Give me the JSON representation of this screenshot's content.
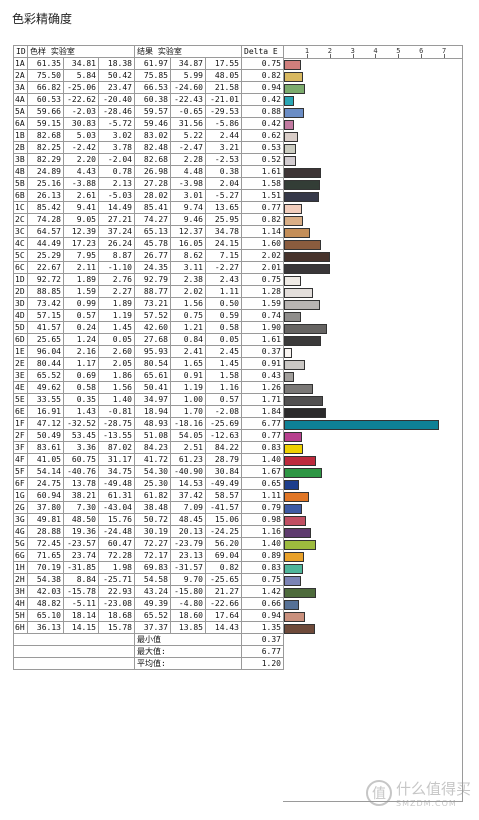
{
  "title": "色彩精确度",
  "headers": [
    "ID",
    "色样 实验室",
    "",
    "",
    "结果 实验室",
    "",
    "",
    "Delta E"
  ],
  "axis_ticks": [
    "1",
    "2",
    "3",
    "4",
    "5",
    "6",
    "7"
  ],
  "axis_max": 7,
  "rows": [
    {
      "id": "1A",
      "s": [
        "61.35",
        "34.81",
        "18.38"
      ],
      "r": [
        "61.97",
        "34.87",
        "17.55"
      ],
      "de": "0.75",
      "color": "#d07f7c"
    },
    {
      "id": "2A",
      "s": [
        "75.50",
        "5.84",
        "50.42"
      ],
      "r": [
        "75.85",
        "5.99",
        "48.05"
      ],
      "de": "0.82",
      "color": "#d8b860"
    },
    {
      "id": "3A",
      "s": [
        "66.82",
        "-25.06",
        "23.47"
      ],
      "r": [
        "66.53",
        "-24.60",
        "21.58"
      ],
      "de": "0.94",
      "color": "#7cab6d"
    },
    {
      "id": "4A",
      "s": [
        "60.53",
        "-22.62",
        "-20.40"
      ],
      "r": [
        "60.38",
        "-22.43",
        "-21.01"
      ],
      "de": "0.42",
      "color": "#2aa6b5"
    },
    {
      "id": "5A",
      "s": [
        "59.66",
        "-2.03",
        "-28.46"
      ],
      "r": [
        "59.57",
        "-0.65",
        "-29.53"
      ],
      "de": "0.88",
      "color": "#6b8dc5"
    },
    {
      "id": "6A",
      "s": [
        "59.15",
        "30.83",
        "-5.72"
      ],
      "r": [
        "59.46",
        "31.56",
        "-5.86"
      ],
      "de": "0.42",
      "color": "#c27aa1"
    },
    {
      "id": "1B",
      "s": [
        "82.68",
        "5.03",
        "3.02"
      ],
      "r": [
        "83.02",
        "5.22",
        "2.44"
      ],
      "de": "0.62",
      "color": "#d9cdc8"
    },
    {
      "id": "2B",
      "s": [
        "82.25",
        "-2.42",
        "3.78"
      ],
      "r": [
        "82.48",
        "-2.47",
        "3.21"
      ],
      "de": "0.53",
      "color": "#cccdc2"
    },
    {
      "id": "3B",
      "s": [
        "82.29",
        "2.20",
        "-2.04"
      ],
      "r": [
        "82.68",
        "2.28",
        "-2.53"
      ],
      "de": "0.52",
      "color": "#d2ccd0"
    },
    {
      "id": "4B",
      "s": [
        "24.89",
        "4.43",
        "0.78"
      ],
      "r": [
        "26.98",
        "4.48",
        "0.38"
      ],
      "de": "1.61",
      "color": "#3e3536"
    },
    {
      "id": "5B",
      "s": [
        "25.16",
        "-3.88",
        "2.13"
      ],
      "r": [
        "27.28",
        "-3.98",
        "2.04"
      ],
      "de": "1.58",
      "color": "#333d36"
    },
    {
      "id": "6B",
      "s": [
        "26.13",
        "2.61",
        "-5.03"
      ],
      "r": [
        "28.02",
        "3.01",
        "-5.27"
      ],
      "de": "1.51",
      "color": "#363949"
    },
    {
      "id": "1C",
      "s": [
        "85.42",
        "9.41",
        "14.49"
      ],
      "r": [
        "85.41",
        "9.74",
        "13.65"
      ],
      "de": "0.77",
      "color": "#f2cebd"
    },
    {
      "id": "2C",
      "s": [
        "74.28",
        "9.05",
        "27.21"
      ],
      "r": [
        "74.27",
        "9.46",
        "25.95"
      ],
      "de": "0.82",
      "color": "#d9ae86"
    },
    {
      "id": "3C",
      "s": [
        "64.57",
        "12.39",
        "37.24"
      ],
      "r": [
        "65.13",
        "12.37",
        "34.78"
      ],
      "de": "1.14",
      "color": "#c48e58"
    },
    {
      "id": "4C",
      "s": [
        "44.49",
        "17.23",
        "26.24"
      ],
      "r": [
        "45.78",
        "16.05",
        "24.15"
      ],
      "de": "1.60",
      "color": "#8a5c3e"
    },
    {
      "id": "5C",
      "s": [
        "25.29",
        "7.95",
        "8.87"
      ],
      "r": [
        "26.77",
        "8.62",
        "7.15"
      ],
      "de": "2.02",
      "color": "#47332c"
    },
    {
      "id": "6C",
      "s": [
        "22.67",
        "2.11",
        "-1.10"
      ],
      "r": [
        "24.35",
        "3.11",
        "-2.27"
      ],
      "de": "2.01",
      "color": "#393638"
    },
    {
      "id": "1D",
      "s": [
        "92.72",
        "1.89",
        "2.76"
      ],
      "r": [
        "92.79",
        "2.38",
        "2.43"
      ],
      "de": "0.75",
      "color": "#efebe6"
    },
    {
      "id": "2D",
      "s": [
        "88.85",
        "1.59",
        "2.27"
      ],
      "r": [
        "88.77",
        "2.02",
        "1.11"
      ],
      "de": "1.28",
      "color": "#e3dedb"
    },
    {
      "id": "3D",
      "s": [
        "73.42",
        "0.99",
        "1.89"
      ],
      "r": [
        "73.21",
        "1.56",
        "0.50"
      ],
      "de": "1.59",
      "color": "#b8b4b2"
    },
    {
      "id": "4D",
      "s": [
        "57.15",
        "0.57",
        "1.19"
      ],
      "r": [
        "57.52",
        "0.75",
        "0.59"
      ],
      "de": "0.74",
      "color": "#8f8d8b"
    },
    {
      "id": "5D",
      "s": [
        "41.57",
        "0.24",
        "1.45"
      ],
      "r": [
        "42.60",
        "1.21",
        "0.58"
      ],
      "de": "1.90",
      "color": "#666462"
    },
    {
      "id": "6D",
      "s": [
        "25.65",
        "1.24",
        "0.05"
      ],
      "r": [
        "27.68",
        "0.84",
        "0.05"
      ],
      "de": "1.61",
      "color": "#3b3a3a"
    },
    {
      "id": "1E",
      "s": [
        "96.04",
        "2.16",
        "2.60"
      ],
      "r": [
        "95.93",
        "2.41",
        "2.45"
      ],
      "de": "0.37",
      "color": "#f8f4f1"
    },
    {
      "id": "2E",
      "s": [
        "80.44",
        "1.17",
        "2.05"
      ],
      "r": [
        "80.54",
        "1.65",
        "1.45"
      ],
      "de": "0.91",
      "color": "#cac7c4"
    },
    {
      "id": "3E",
      "s": [
        "65.52",
        "0.69",
        "1.86"
      ],
      "r": [
        "65.61",
        "0.91",
        "1.58"
      ],
      "de": "0.43",
      "color": "#a19e9b"
    },
    {
      "id": "4E",
      "s": [
        "49.62",
        "0.58",
        "1.56"
      ],
      "r": [
        "50.41",
        "1.19",
        "1.16"
      ],
      "de": "1.26",
      "color": "#7a7876"
    },
    {
      "id": "5E",
      "s": [
        "33.55",
        "0.35",
        "1.40"
      ],
      "r": [
        "34.97",
        "1.00",
        "0.57"
      ],
      "de": "1.71",
      "color": "#515050"
    },
    {
      "id": "6E",
      "s": [
        "16.91",
        "1.43",
        "-0.81"
      ],
      "r": [
        "18.94",
        "1.70",
        "-2.08"
      ],
      "de": "1.84",
      "color": "#2b2a2b"
    },
    {
      "id": "1F",
      "s": [
        "47.12",
        "-32.52",
        "-28.75"
      ],
      "r": [
        "48.93",
        "-18.16",
        "-25.69"
      ],
      "de": "6.77",
      "color": "#0e8196"
    },
    {
      "id": "2F",
      "s": [
        "50.49",
        "53.45",
        "-13.55"
      ],
      "r": [
        "51.08",
        "54.05",
        "-12.63"
      ],
      "de": "0.77",
      "color": "#b7408e"
    },
    {
      "id": "3F",
      "s": [
        "83.61",
        "3.36",
        "87.02"
      ],
      "r": [
        "84.23",
        "2.51",
        "84.22"
      ],
      "de": "0.83",
      "color": "#eed000"
    },
    {
      "id": "4F",
      "s": [
        "41.05",
        "60.75",
        "31.17"
      ],
      "r": [
        "41.72",
        "61.23",
        "28.79"
      ],
      "de": "1.40",
      "color": "#bd2a3c"
    },
    {
      "id": "5F",
      "s": [
        "54.14",
        "-40.76",
        "34.75"
      ],
      "r": [
        "54.30",
        "-40.90",
        "30.84"
      ],
      "de": "1.67",
      "color": "#2e9644"
    },
    {
      "id": "6F",
      "s": [
        "24.75",
        "13.78",
        "-49.48"
      ],
      "r": [
        "25.30",
        "14.53",
        "-49.49"
      ],
      "de": "0.65",
      "color": "#1d3e8c"
    },
    {
      "id": "1G",
      "s": [
        "60.94",
        "38.21",
        "61.31"
      ],
      "r": [
        "61.82",
        "37.42",
        "58.57"
      ],
      "de": "1.11",
      "color": "#e07626"
    },
    {
      "id": "2G",
      "s": [
        "37.80",
        "7.30",
        "-43.04"
      ],
      "r": [
        "38.48",
        "7.09",
        "-41.57"
      ],
      "de": "0.79",
      "color": "#3d5aa5"
    },
    {
      "id": "3G",
      "s": [
        "49.81",
        "48.50",
        "15.76"
      ],
      "r": [
        "50.72",
        "48.45",
        "15.06"
      ],
      "de": "0.98",
      "color": "#c04f63"
    },
    {
      "id": "4G",
      "s": [
        "28.88",
        "19.36",
        "-24.48"
      ],
      "r": [
        "30.19",
        "20.13",
        "-24.25"
      ],
      "de": "1.16",
      "color": "#5e3b6e"
    },
    {
      "id": "5G",
      "s": [
        "72.45",
        "-23.57",
        "60.47"
      ],
      "r": [
        "72.27",
        "-23.79",
        "56.20"
      ],
      "de": "1.40",
      "color": "#9dbb3e"
    },
    {
      "id": "6G",
      "s": [
        "71.65",
        "23.74",
        "72.28"
      ],
      "r": [
        "72.17",
        "23.13",
        "69.04"
      ],
      "de": "0.89",
      "color": "#e9a12a"
    },
    {
      "id": "1H",
      "s": [
        "70.19",
        "-31.85",
        "1.98"
      ],
      "r": [
        "69.83",
        "-31.57",
        "0.82"
      ],
      "de": "0.83",
      "color": "#4fb59a"
    },
    {
      "id": "2H",
      "s": [
        "54.38",
        "8.84",
        "-25.71"
      ],
      "r": [
        "54.58",
        "9.70",
        "-25.65"
      ],
      "de": "0.75",
      "color": "#7b83b5"
    },
    {
      "id": "3H",
      "s": [
        "42.03",
        "-15.78",
        "22.93"
      ],
      "r": [
        "43.24",
        "-15.80",
        "21.27"
      ],
      "de": "1.42",
      "color": "#4e6b3c"
    },
    {
      "id": "4H",
      "s": [
        "48.82",
        "-5.11",
        "-23.08"
      ],
      "r": [
        "49.39",
        "-4.80",
        "-22.66"
      ],
      "de": "0.66",
      "color": "#567196"
    },
    {
      "id": "5H",
      "s": [
        "65.10",
        "18.14",
        "18.68"
      ],
      "r": [
        "65.52",
        "18.60",
        "17.64"
      ],
      "de": "0.94",
      "color": "#c9907d"
    },
    {
      "id": "6H",
      "s": [
        "36.13",
        "14.15",
        "15.78"
      ],
      "r": [
        "37.37",
        "13.85",
        "14.43"
      ],
      "de": "1.35",
      "color": "#6e4a3a"
    }
  ],
  "summary": [
    {
      "label": "最小值",
      "value": "0.37"
    },
    {
      "label": "最大值:",
      "value": "6.77"
    },
    {
      "label": "平均值:",
      "value": "1.20"
    }
  ],
  "watermark": {
    "cn": "什么值得买",
    "en": "SMZDM.COM",
    "logo": "值"
  },
  "chart_data": {
    "type": "bar",
    "orientation": "horizontal",
    "xlim": [
      0,
      7
    ],
    "ticks": [
      "1",
      "2",
      "3",
      "4",
      "5",
      "6",
      "7"
    ],
    "categories": [
      "1A",
      "2A",
      "3A",
      "4A",
      "5A",
      "6A",
      "1B",
      "2B",
      "3B",
      "4B",
      "5B",
      "6B",
      "1C",
      "2C",
      "3C",
      "4C",
      "5C",
      "6C",
      "1D",
      "2D",
      "3D",
      "4D",
      "5D",
      "6D",
      "1E",
      "2E",
      "3E",
      "4E",
      "5E",
      "6E",
      "1F",
      "2F",
      "3F",
      "4F",
      "5F",
      "6F",
      "1G",
      "2G",
      "3G",
      "4G",
      "5G",
      "6G",
      "1H",
      "2H",
      "3H",
      "4H",
      "5H",
      "6H"
    ],
    "values": [
      0.75,
      0.82,
      0.94,
      0.42,
      0.88,
      0.42,
      0.62,
      0.53,
      0.52,
      1.61,
      1.58,
      1.51,
      0.77,
      0.82,
      1.14,
      1.6,
      2.02,
      2.01,
      0.75,
      1.28,
      1.59,
      0.74,
      1.9,
      1.61,
      0.37,
      0.91,
      0.43,
      1.26,
      1.71,
      1.84,
      6.77,
      0.77,
      0.83,
      1.4,
      1.67,
      0.65,
      1.11,
      0.79,
      0.98,
      1.16,
      1.4,
      0.89,
      0.83,
      0.75,
      1.42,
      0.66,
      0.94,
      1.35
    ]
  }
}
